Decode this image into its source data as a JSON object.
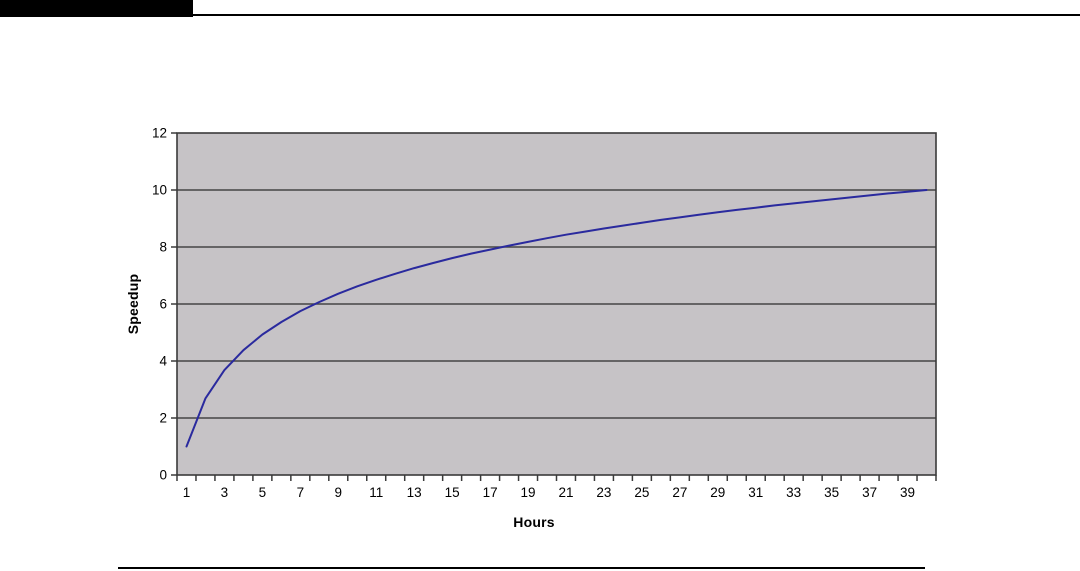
{
  "page": {
    "background": "#ffffff",
    "header_block_color": "#000000",
    "rule_color": "#000000"
  },
  "chart_data": {
    "type": "line",
    "title": "",
    "xlabel": "Hours",
    "ylabel": "Speedup",
    "x": [
      1,
      2,
      3,
      4,
      5,
      6,
      7,
      8,
      9,
      10,
      11,
      12,
      13,
      14,
      15,
      16,
      17,
      18,
      19,
      20,
      21,
      22,
      23,
      24,
      25,
      26,
      27,
      28,
      29,
      30,
      31,
      32,
      33,
      34,
      35,
      36,
      37,
      38,
      39,
      40
    ],
    "series": [
      {
        "name": "Speedup",
        "color": "#2a2a9e",
        "values": [
          1.0,
          2.69,
          3.68,
          4.38,
          4.93,
          5.37,
          5.75,
          6.07,
          6.36,
          6.62,
          6.85,
          7.06,
          7.26,
          7.44,
          7.61,
          7.77,
          7.91,
          8.05,
          8.18,
          8.31,
          8.43,
          8.54,
          8.65,
          8.75,
          8.85,
          8.95,
          9.04,
          9.13,
          9.22,
          9.3,
          9.38,
          9.46,
          9.53,
          9.6,
          9.67,
          9.74,
          9.81,
          9.88,
          9.94,
          10.0
        ]
      }
    ],
    "ylim": [
      0,
      12
    ],
    "yticks": [
      0,
      2,
      4,
      6,
      8,
      10,
      12
    ],
    "xtick_labels": [
      1,
      3,
      5,
      7,
      9,
      11,
      13,
      15,
      17,
      19,
      21,
      23,
      25,
      27,
      29,
      31,
      33,
      35,
      37,
      39
    ],
    "grid": "horizontal",
    "legend_position": "none",
    "markers": "none",
    "colors": {
      "plot_bg": "#c6c3c6",
      "axis": "#3a3a3a",
      "grid": "#454545",
      "line": "#2a2a9e",
      "text": "#000000"
    }
  }
}
